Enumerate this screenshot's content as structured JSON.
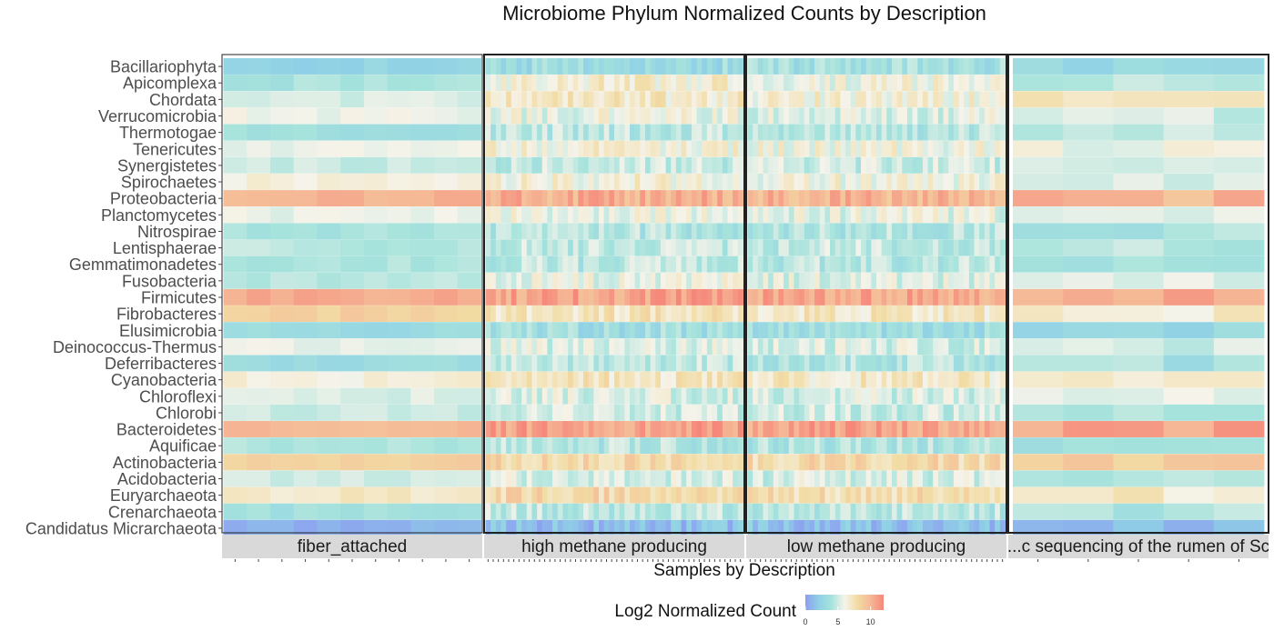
{
  "chart_data": {
    "type": "heatmap",
    "title": "Microbiome Phylum Normalized Counts by Description",
    "xlabel": "Samples by Description",
    "ylabel": "",
    "legend": {
      "title": "Log2 Normalized Count",
      "ticks": [
        0,
        5,
        10
      ],
      "range": [
        0,
        12
      ],
      "colors": [
        "#8c9ef0",
        "#8fd0e6",
        "#a6e3dc",
        "#f5f3ea",
        "#f2dca4",
        "#f5b896",
        "#f5877a"
      ],
      "position": "bottom"
    },
    "phyla": [
      "Bacillariophyta",
      "Apicomplexa",
      "Chordata",
      "Verrucomicrobia",
      "Thermotogae",
      "Tenericutes",
      "Synergistetes",
      "Spirochaetes",
      "Proteobacteria",
      "Planctomycetes",
      "Nitrospirae",
      "Lentisphaerae",
      "Gemmatimonadetes",
      "Fusobacteria",
      "Firmicutes",
      "Fibrobacteres",
      "Elusimicrobia",
      "Deinococcus-Thermus",
      "Deferribacteres",
      "Cyanobacteria",
      "Chloroflexi",
      "Chlorobi",
      "Bacteroidetes",
      "Aquificae",
      "Actinobacteria",
      "Acidobacteria",
      "Euryarchaeota",
      "Crenarchaeota",
      "Candidatus Micrarchaeota"
    ],
    "panels": [
      {
        "label": "fiber_attached",
        "n_samples": 11,
        "profile": [
          2.5,
          4.0,
          5.2,
          5.8,
          3.6,
          5.6,
          4.9,
          6.3,
          10.2,
          5.7,
          3.9,
          4.5,
          4.1,
          4.4,
          10.5,
          8.6,
          3.1,
          5.6,
          3.3,
          6.4,
          5.3,
          5.0,
          9.7,
          4.2,
          8.7,
          5.0,
          7.0,
          3.7,
          0.8
        ],
        "spread": 0.5
      },
      {
        "label": "high methane producing",
        "n_samples": 50,
        "profile": [
          3.2,
          6.6,
          6.9,
          5.8,
          4.5,
          6.4,
          4.8,
          6.4,
          10.3,
          5.9,
          4.2,
          4.8,
          4.5,
          5.8,
          10.8,
          7.2,
          3.4,
          5.4,
          4.5,
          7.2,
          5.4,
          5.0,
          11.0,
          4.3,
          8.2,
          5.4,
          8.1,
          4.6,
          1.4
        ],
        "spread": 1.3
      },
      {
        "label": "low methane producing",
        "n_samples": 50,
        "profile": [
          3.6,
          6.1,
          6.4,
          5.5,
          4.3,
          6.1,
          4.9,
          6.1,
          10.0,
          5.7,
          4.2,
          4.7,
          4.4,
          5.5,
          10.6,
          7.0,
          3.2,
          5.3,
          4.2,
          6.9,
          5.3,
          4.9,
          10.8,
          4.2,
          8.0,
          5.3,
          7.8,
          4.4,
          1.5
        ],
        "spread": 1.3
      },
      {
        "label": "...c sequencing of the rumen of Sc",
        "n_samples": 5,
        "profile": [
          3.0,
          4.3,
          6.9,
          5.2,
          4.4,
          5.8,
          4.6,
          5.6,
          10.0,
          5.3,
          4.0,
          4.3,
          4.0,
          5.2,
          10.4,
          6.6,
          3.0,
          5.3,
          3.8,
          6.8,
          5.1,
          4.8,
          10.9,
          4.0,
          9.0,
          4.9,
          6.9,
          4.1,
          1.5
        ],
        "spread": 0.9
      }
    ]
  }
}
